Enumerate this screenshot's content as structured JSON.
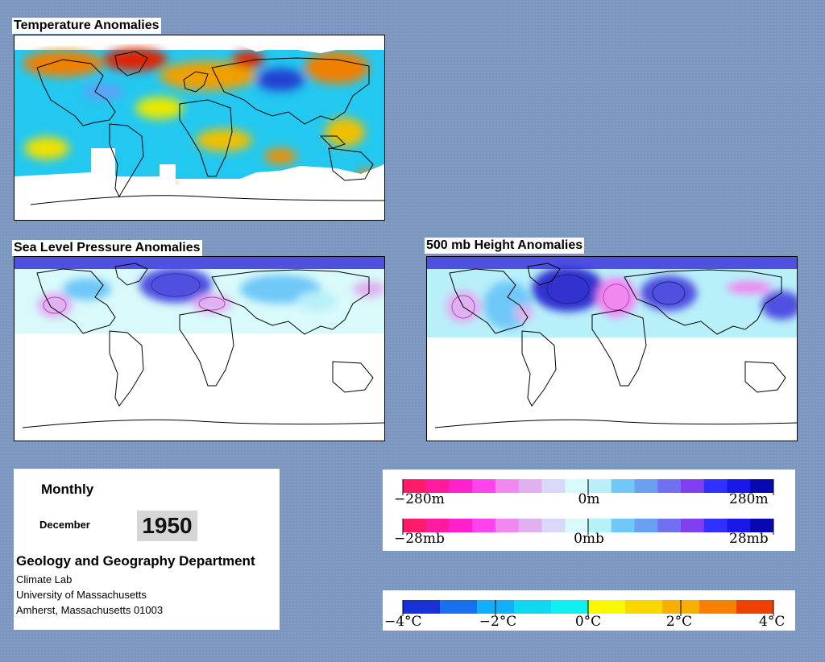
{
  "temperature_panel": {
    "title": "Temperature Anomalies"
  },
  "slp_panel": {
    "title": "Sea Level Pressure Anomalies"
  },
  "height_panel": {
    "title": "500 mb Height Anomalies"
  },
  "info": {
    "frequency": "Monthly",
    "month": "December",
    "year": "1950",
    "department": "Geology and Geography Department",
    "lines": [
      "Climate Lab",
      "University of Massachusetts",
      "Amherst, Massachusetts 01003"
    ]
  },
  "height_legend": {
    "labels": [
      "−280m",
      "0m",
      "280m"
    ],
    "colors": [
      "#ff1a6b",
      "#ff1aa0",
      "#ff22cc",
      "#ff44ee",
      "#f088f0",
      "#e0b0f0",
      "#d8d8f8",
      "#d8fafa",
      "#b8f0fa",
      "#70c8f8",
      "#6aa0f0",
      "#7070f0",
      "#8040f0",
      "#3030ff",
      "#1818e8",
      "#0808b0"
    ]
  },
  "pressure_legend": {
    "labels": [
      "−28mb",
      "0mb",
      "28mb"
    ],
    "colors": [
      "#ff1a6b",
      "#ff1aa0",
      "#ff22cc",
      "#ff44ee",
      "#f088f0",
      "#e0b0f0",
      "#d8d8f8",
      "#d8fafa",
      "#b8f0fa",
      "#70c8f8",
      "#6aa0f0",
      "#7070f0",
      "#8040f0",
      "#3030ff",
      "#1818e8",
      "#0808b0"
    ]
  },
  "temperature_legend": {
    "labels": [
      "−4°C",
      "−2°C",
      "0°C",
      "2°C",
      "4°C"
    ],
    "colors": [
      "#1830d8",
      "#1870f0",
      "#10b0f8",
      "#10d8f0",
      "#10f0f0",
      "#f8f800",
      "#f8d800",
      "#f8b000",
      "#f88000",
      "#f04000"
    ]
  }
}
